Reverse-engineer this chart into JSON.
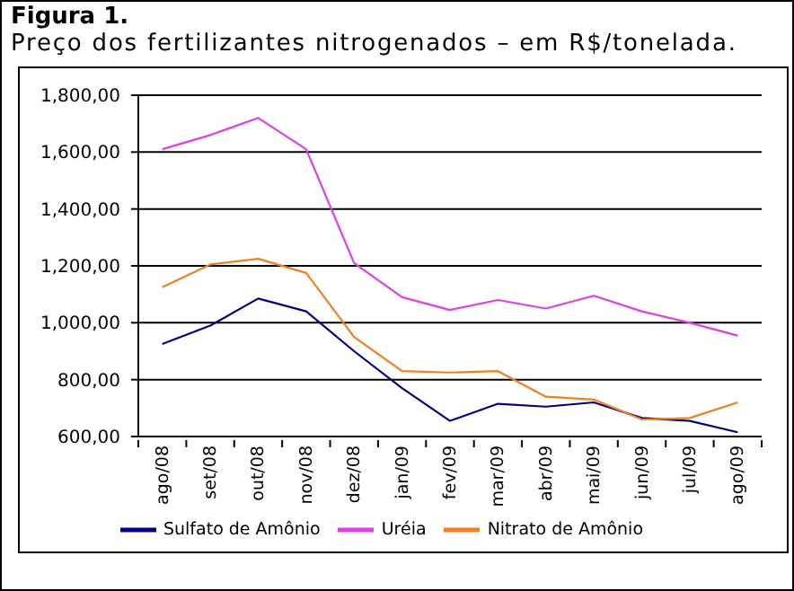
{
  "chart_data": {
    "type": "line",
    "title": "Figura 1.",
    "subtitle": "Preço dos fertilizantes nitrogenados – em R$/tonelada.",
    "categories": [
      "ago/08",
      "set/08",
      "out/08",
      "nov/08",
      "dez/08",
      "jan/09",
      "fev/09",
      "mar/09",
      "abr/09",
      "mai/09",
      "jun/09",
      "jul/09",
      "ago/09"
    ],
    "series": [
      {
        "name": "Sulfato de Amônio",
        "color": "#000080",
        "values": [
          925,
          990,
          1085,
          1040,
          900,
          770,
          655,
          715,
          705,
          720,
          665,
          655,
          615
        ]
      },
      {
        "name": "Uréia",
        "color": "#e040e0",
        "values": [
          1610,
          1660,
          1720,
          1610,
          1210,
          1090,
          1045,
          1080,
          1050,
          1095,
          1040,
          1000,
          955
        ]
      },
      {
        "name": "Nitrato de Amônio",
        "color": "#f08020",
        "values": [
          1125,
          1205,
          1225,
          1175,
          950,
          830,
          825,
          830,
          740,
          730,
          660,
          665,
          720
        ]
      }
    ],
    "ylim": [
      600,
      1800
    ],
    "yticks": [
      {
        "value": 600,
        "label": "600,00"
      },
      {
        "value": 800,
        "label": "800,00"
      },
      {
        "value": 1000,
        "label": "1,000,00"
      },
      {
        "value": 1200,
        "label": "1,200,00"
      },
      {
        "value": 1400,
        "label": "1,400,00"
      },
      {
        "value": 1600,
        "label": "1,600,00"
      },
      {
        "value": 1800,
        "label": "1,800,00"
      }
    ],
    "grid": "y",
    "legend": "bottom"
  }
}
